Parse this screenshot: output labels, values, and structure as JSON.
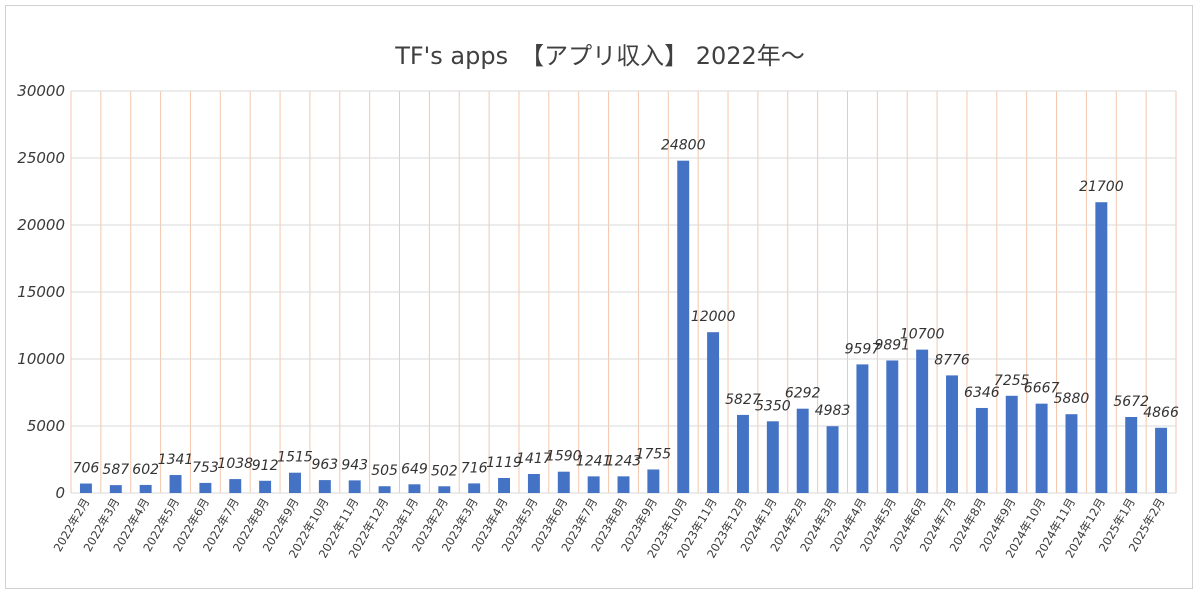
{
  "chart_data": {
    "type": "bar",
    "title": "TF's apps　【アプリ収入】 2022年〜",
    "categories": [
      "2022年2月",
      "2022年3月",
      "2022年4月",
      "2022年5月",
      "2022年6月",
      "2022年7月",
      "2022年8月",
      "2022年9月",
      "2022年10月",
      "2022年11月",
      "2022年12月",
      "2023年1月",
      "2023年2月",
      "2023年3月",
      "2023年4月",
      "2023年5月",
      "2023年6月",
      "2023年7月",
      "2023年8月",
      "2023年9月",
      "2023年10月",
      "2023年11月",
      "2023年12月",
      "2024年1月",
      "2024年2月",
      "2024年3月",
      "2024年4月",
      "2024年5月",
      "2024年6月",
      "2024年7月",
      "2024年8月",
      "2024年9月",
      "2024年10月",
      "2024年11月",
      "2024年12月",
      "2025年1月",
      "2025年2月"
    ],
    "values": [
      706,
      587,
      602,
      1341,
      753,
      1038,
      912,
      1515,
      963,
      943,
      505,
      649,
      502,
      716,
      1119,
      1417,
      1590,
      1241,
      1243,
      1755,
      24800,
      12000,
      5827,
      5350,
      6292,
      4983,
      9597,
      9891,
      10700,
      8776,
      6346,
      7255,
      6667,
      5880,
      21700,
      5672,
      4866
    ],
    "y_ticks": [
      "0",
      "5000",
      "10000",
      "15000",
      "20000",
      "25000",
      "30000"
    ],
    "ylim": [
      0,
      30000
    ],
    "grid": true,
    "xlabel": "",
    "ylabel": "",
    "colors": {
      "bar": "#4472C4",
      "grid_h": "#d9d9d9",
      "grid_v": "#f4c7ad"
    }
  }
}
